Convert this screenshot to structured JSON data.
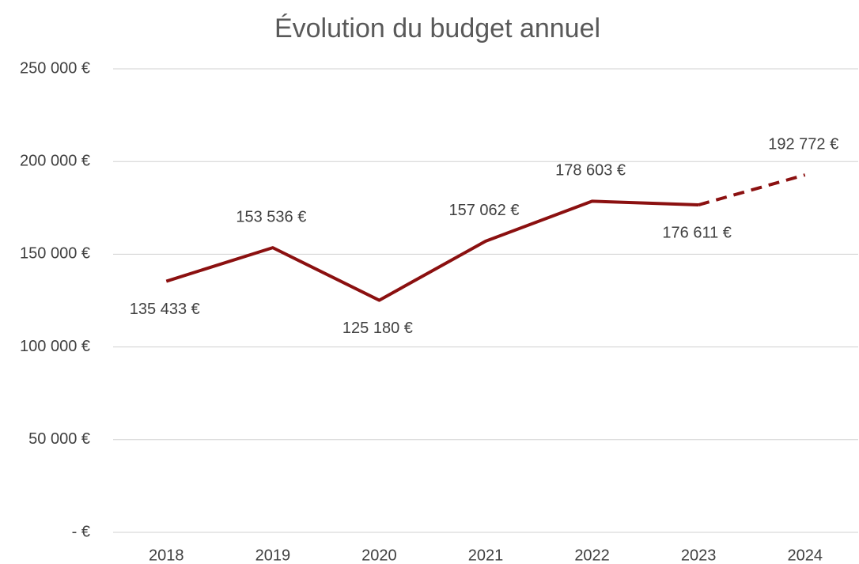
{
  "chart_data": {
    "type": "line",
    "title": "Évolution du budget annuel",
    "categories": [
      "2018",
      "2019",
      "2020",
      "2021",
      "2022",
      "2023",
      "2024"
    ],
    "values": [
      135433,
      153536,
      125180,
      157062,
      178603,
      176611,
      192772
    ],
    "value_labels": [
      "135 433 €",
      "153 536 €",
      "125 180 €",
      "157 062 €",
      "178 603 €",
      "176 611 €",
      "192 772 €"
    ],
    "label_positions": [
      "below",
      "above",
      "below",
      "above",
      "above",
      "below",
      "above"
    ],
    "dashed_from_index": 5,
    "color": "#8b1010",
    "ylim": [
      0,
      250000
    ],
    "yticks": [
      {
        "value": 0,
        "label": "-   €"
      },
      {
        "value": 50000,
        "label": "50 000 €"
      },
      {
        "value": 100000,
        "label": "100 000 €"
      },
      {
        "value": 150000,
        "label": "150 000 €"
      },
      {
        "value": 200000,
        "label": "200 000 €"
      },
      {
        "value": 250000,
        "label": "250 000 €"
      }
    ],
    "grid": true
  }
}
